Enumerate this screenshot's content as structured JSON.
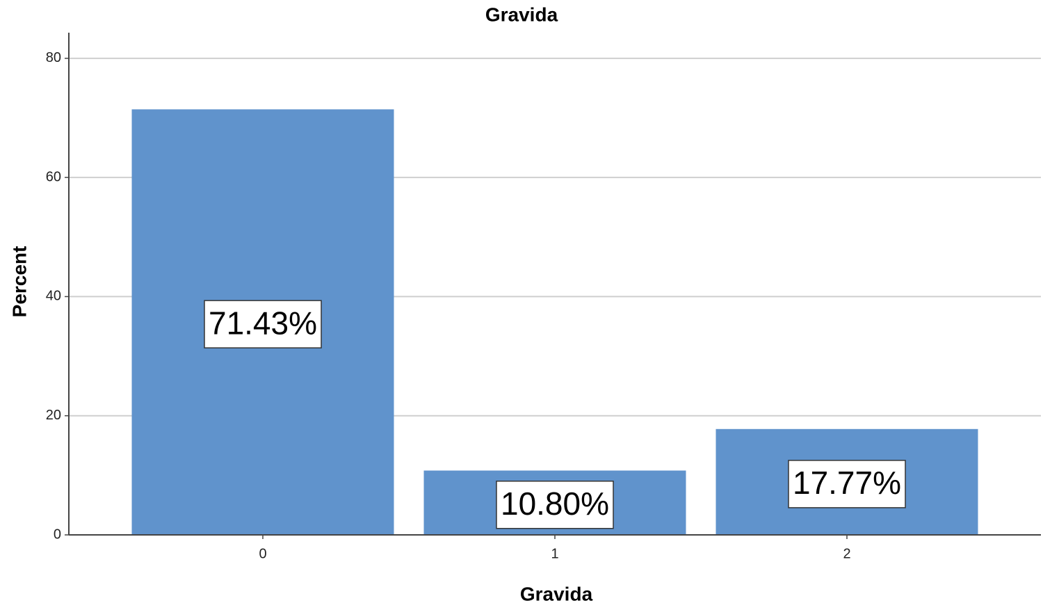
{
  "chart_data": {
    "type": "bar",
    "title": "Gravida",
    "x_label": "Gravida",
    "y_label": "Percent",
    "categories": [
      "0",
      "1",
      "2"
    ],
    "values": [
      71.43,
      10.8,
      17.77
    ],
    "value_labels": [
      "71.43%",
      "10.80%",
      "17.77%"
    ],
    "color": "#6093cc",
    "ylim": [
      0,
      84.3
    ],
    "yticks": [
      0,
      20,
      40,
      60,
      80
    ],
    "grid": true
  }
}
